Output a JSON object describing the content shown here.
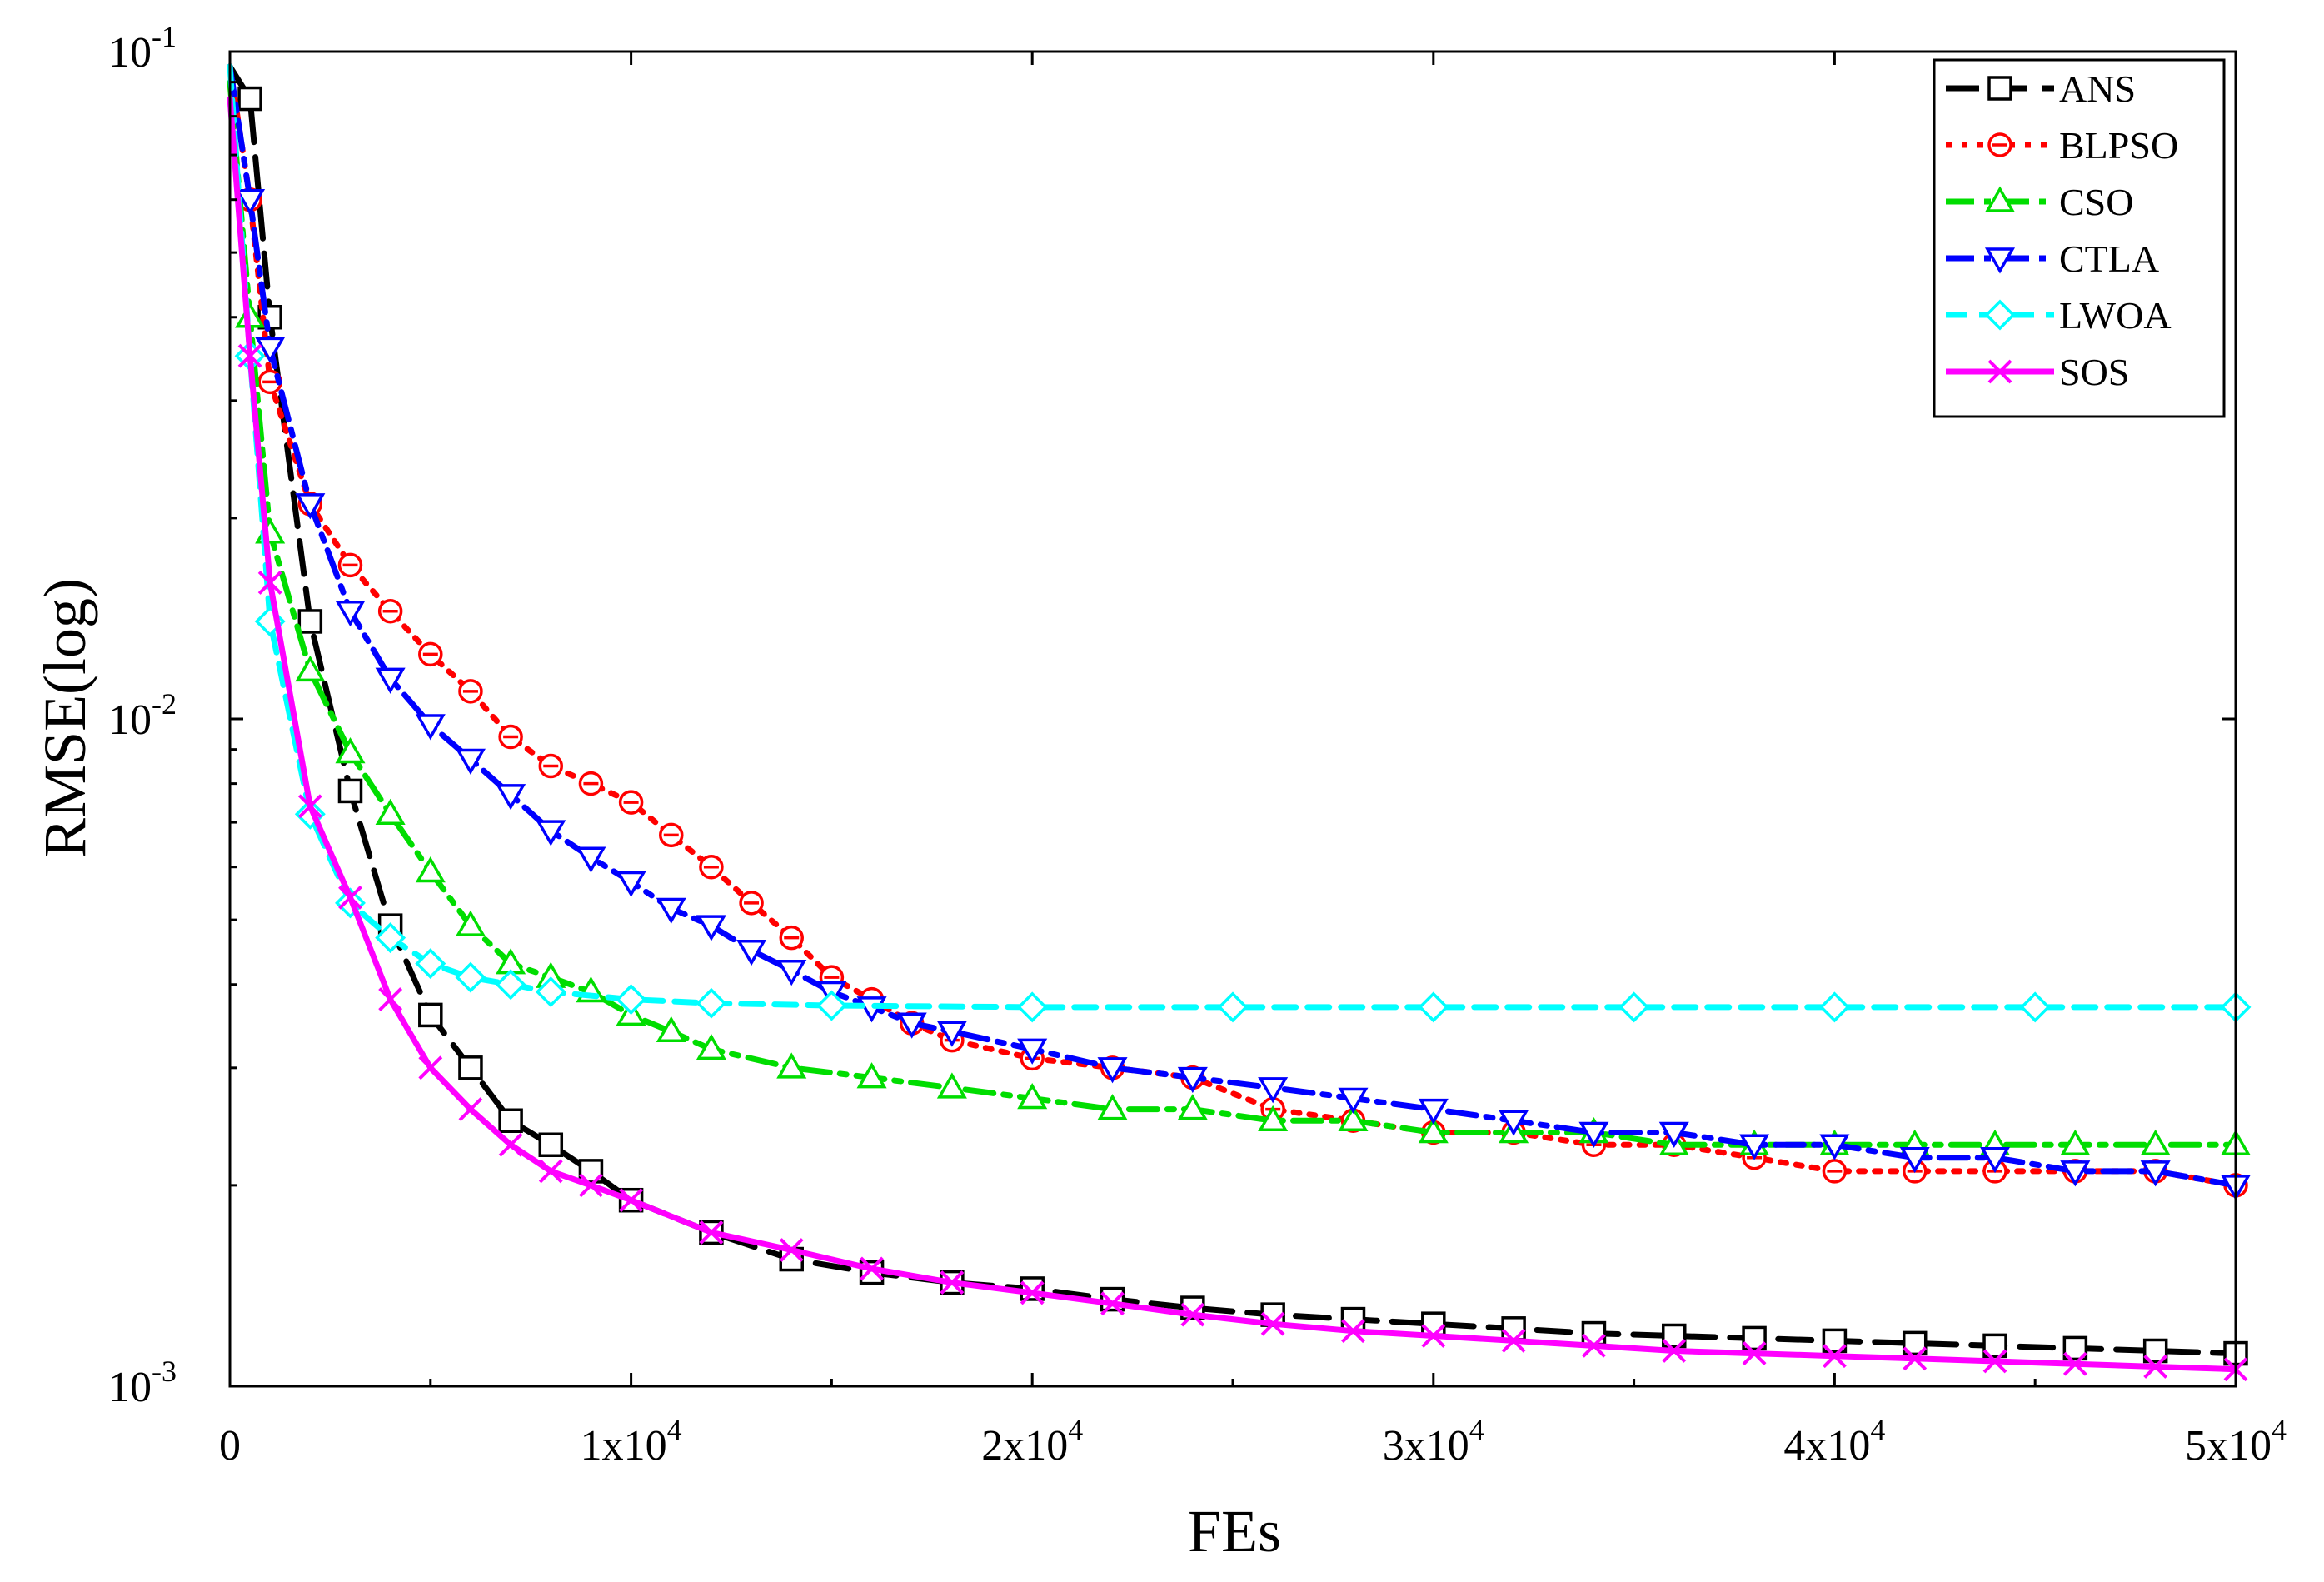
{
  "chart_data": {
    "type": "line",
    "title": "",
    "xlabel": "FEs",
    "ylabel": "RMSE(log)",
    "xlim": [
      0,
      50000
    ],
    "ylim": [
      0.001,
      0.1
    ],
    "yscale": "log",
    "x_ticks": [
      {
        "value": 0,
        "label": "0"
      },
      {
        "value": 10000,
        "base": "1x10",
        "exp": "4"
      },
      {
        "value": 20000,
        "base": "2x10",
        "exp": "4"
      },
      {
        "value": 30000,
        "base": "3x10",
        "exp": "4"
      },
      {
        "value": 40000,
        "base": "4x10",
        "exp": "4"
      },
      {
        "value": 50000,
        "base": "5x10",
        "exp": "4"
      }
    ],
    "y_ticks": [
      {
        "value": 0.1,
        "base": "10",
        "exp": "-1"
      },
      {
        "value": 0.01,
        "base": "10",
        "exp": "-2"
      },
      {
        "value": 0.001,
        "base": "10",
        "exp": "-3"
      }
    ],
    "legend_position": "top-right",
    "series": [
      {
        "name": "ANS",
        "color": "#000000",
        "dash": "long-dash",
        "marker": "square",
        "x": [
          0,
          500,
          1000,
          2000,
          3000,
          4000,
          5000,
          6000,
          7000,
          8000,
          9000,
          10000,
          12000,
          14000,
          16000,
          18000,
          20000,
          22000,
          24000,
          26000,
          28000,
          30000,
          32000,
          34000,
          36000,
          38000,
          40000,
          42000,
          44000,
          46000,
          48000,
          50000
        ],
        "y": [
          0.095,
          0.085,
          0.04,
          0.014,
          0.0078,
          0.0049,
          0.0036,
          0.003,
          0.0025,
          0.0023,
          0.0021,
          0.0019,
          0.0017,
          0.00155,
          0.00148,
          0.00143,
          0.0014,
          0.00135,
          0.00131,
          0.00128,
          0.00126,
          0.00124,
          0.00122,
          0.0012,
          0.00119,
          0.00118,
          0.00117,
          0.00116,
          0.00115,
          0.00114,
          0.00113,
          0.00112
        ]
      },
      {
        "name": "BLPSO",
        "color": "#ff0000",
        "dash": "dot",
        "marker": "circle",
        "x": [
          0,
          500,
          1000,
          2000,
          3000,
          4000,
          5000,
          6000,
          7000,
          8000,
          9000,
          10000,
          11000,
          12000,
          13000,
          14000,
          15000,
          16000,
          17000,
          18000,
          20000,
          22000,
          24000,
          26000,
          28000,
          30000,
          32000,
          34000,
          36000,
          38000,
          40000,
          42000,
          44000,
          46000,
          48000,
          50000
        ],
        "y": [
          0.095,
          0.06,
          0.032,
          0.021,
          0.017,
          0.0145,
          0.0125,
          0.011,
          0.0094,
          0.0085,
          0.008,
          0.0075,
          0.0067,
          0.006,
          0.0053,
          0.0047,
          0.0041,
          0.0038,
          0.0035,
          0.0033,
          0.0031,
          0.003,
          0.0029,
          0.0026,
          0.0025,
          0.0024,
          0.0024,
          0.0023,
          0.0023,
          0.0022,
          0.0021,
          0.0021,
          0.0021,
          0.0021,
          0.0021,
          0.002
        ]
      },
      {
        "name": "CSO",
        "color": "#00dd00",
        "dash": "dash-dot",
        "marker": "triangle-up",
        "x": [
          0,
          500,
          1000,
          2000,
          3000,
          4000,
          5000,
          6000,
          7000,
          8000,
          9000,
          10000,
          11000,
          12000,
          14000,
          16000,
          18000,
          20000,
          22000,
          24000,
          26000,
          28000,
          30000,
          32000,
          34000,
          36000,
          38000,
          40000,
          42000,
          44000,
          46000,
          48000,
          50000
        ],
        "y": [
          0.09,
          0.04,
          0.019,
          0.0118,
          0.0089,
          0.0072,
          0.0059,
          0.0049,
          0.0043,
          0.0041,
          0.0039,
          0.0036,
          0.0034,
          0.0032,
          0.003,
          0.0029,
          0.0028,
          0.0027,
          0.0026,
          0.0026,
          0.0025,
          0.0025,
          0.0024,
          0.0024,
          0.0024,
          0.0023,
          0.0023,
          0.0023,
          0.0023,
          0.0023,
          0.0023,
          0.0023,
          0.0023
        ]
      },
      {
        "name": "CTLA",
        "color": "#0000ff",
        "dash": "dash-dot",
        "marker": "triangle-down",
        "x": [
          0,
          500,
          1000,
          2000,
          3000,
          4000,
          5000,
          6000,
          7000,
          8000,
          9000,
          10000,
          11000,
          12000,
          13000,
          14000,
          15000,
          16000,
          17000,
          18000,
          20000,
          22000,
          24000,
          26000,
          28000,
          30000,
          32000,
          34000,
          36000,
          38000,
          40000,
          42000,
          44000,
          46000,
          48000,
          50000
        ],
        "y": [
          0.095,
          0.06,
          0.036,
          0.021,
          0.0145,
          0.0115,
          0.0098,
          0.0087,
          0.0077,
          0.0068,
          0.0062,
          0.0057,
          0.0052,
          0.0049,
          0.0045,
          0.0042,
          0.0039,
          0.0037,
          0.0035,
          0.0034,
          0.0032,
          0.003,
          0.0029,
          0.0028,
          0.0027,
          0.0026,
          0.0025,
          0.0024,
          0.0024,
          0.0023,
          0.0023,
          0.0022,
          0.0022,
          0.0021,
          0.0021,
          0.002
        ]
      },
      {
        "name": "LWOA",
        "color": "#00ffff",
        "dash": "dash",
        "marker": "diamond",
        "x": [
          0,
          500,
          1000,
          2000,
          3000,
          4000,
          5000,
          6000,
          7000,
          8000,
          10000,
          12000,
          15000,
          20000,
          25000,
          30000,
          35000,
          40000,
          45000,
          50000
        ],
        "y": [
          0.095,
          0.035,
          0.014,
          0.0072,
          0.0053,
          0.0047,
          0.0043,
          0.0041,
          0.004,
          0.0039,
          0.0038,
          0.00375,
          0.00372,
          0.0037,
          0.0037,
          0.0037,
          0.0037,
          0.0037,
          0.0037,
          0.0037
        ]
      },
      {
        "name": "SOS",
        "color": "#ff00ff",
        "dash": "solid",
        "marker": "x",
        "x": [
          0,
          500,
          1000,
          2000,
          3000,
          4000,
          5000,
          6000,
          7000,
          8000,
          9000,
          10000,
          12000,
          14000,
          16000,
          18000,
          20000,
          22000,
          24000,
          26000,
          28000,
          30000,
          32000,
          34000,
          36000,
          38000,
          40000,
          42000,
          44000,
          46000,
          48000,
          50000
        ],
        "y": [
          0.085,
          0.035,
          0.016,
          0.0074,
          0.0054,
          0.0038,
          0.003,
          0.0026,
          0.0023,
          0.0021,
          0.002,
          0.0019,
          0.0017,
          0.0016,
          0.0015,
          0.00143,
          0.00138,
          0.00133,
          0.00128,
          0.00124,
          0.00121,
          0.00119,
          0.00117,
          0.00115,
          0.00113,
          0.00112,
          0.00111,
          0.0011,
          0.00109,
          0.00108,
          0.00107,
          0.00106
        ]
      }
    ]
  }
}
